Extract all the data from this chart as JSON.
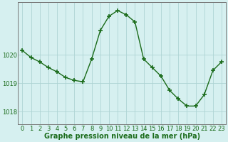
{
  "x": [
    0,
    1,
    2,
    3,
    4,
    5,
    6,
    7,
    8,
    9,
    10,
    11,
    12,
    13,
    14,
    15,
    16,
    17,
    18,
    19,
    20,
    21,
    22,
    23
  ],
  "y": [
    1020.15,
    1019.9,
    1019.75,
    1019.55,
    1019.4,
    1019.2,
    1019.1,
    1019.05,
    1019.85,
    1020.85,
    1021.35,
    1021.55,
    1021.4,
    1021.15,
    1019.85,
    1019.55,
    1019.25,
    1018.75,
    1018.45,
    1018.2,
    1018.2,
    1018.6,
    1019.45,
    1019.75
  ],
  "line_color": "#1a6b1a",
  "marker": "+",
  "marker_size": 4,
  "marker_linewidth": 1.2,
  "line_width": 1.0,
  "bg_color": "#d6f0f0",
  "grid_color": "#aed4d4",
  "xlabel": "Graphe pression niveau de la mer (hPa)",
  "xlabel_fontsize": 7,
  "xlabel_color": "#1a6b1a",
  "tick_label_color": "#1a6b1a",
  "yticks": [
    1018,
    1019,
    1020
  ],
  "ylim": [
    1017.55,
    1021.85
  ],
  "xlim": [
    -0.5,
    23.5
  ],
  "tick_fontsize": 6,
  "axis_color": "#777777"
}
